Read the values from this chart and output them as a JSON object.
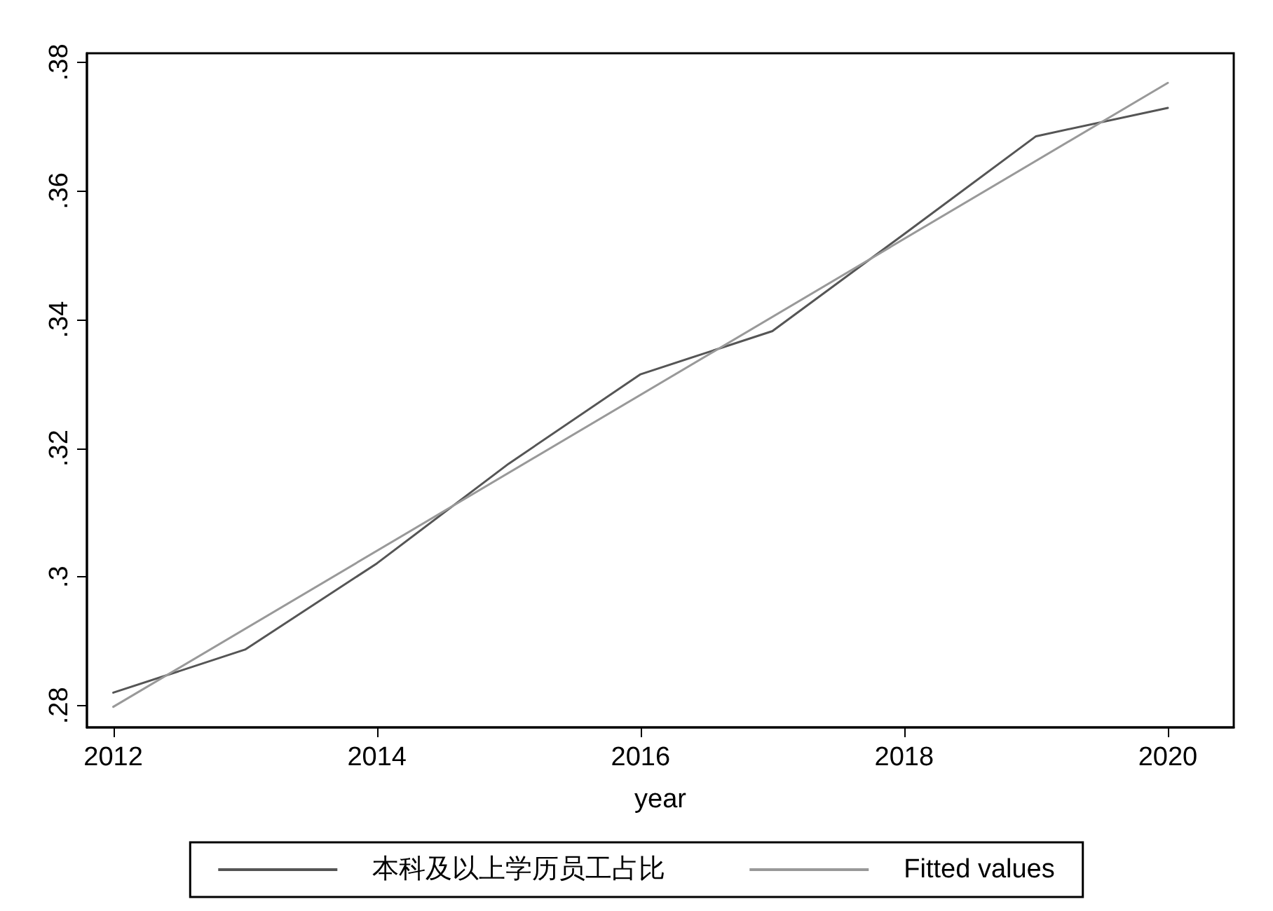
{
  "chart_data": {
    "type": "line",
    "xlabel": "year",
    "x": [
      2012,
      2013,
      2014,
      2015,
      2016,
      2017,
      2018,
      2019,
      2020
    ],
    "series": [
      {
        "name": "本科及以上学历员工占比",
        "color": "#555555",
        "values": [
          0.282,
          0.2887,
          0.3021,
          0.3176,
          0.3315,
          0.3382,
          0.3533,
          0.3685,
          0.3729
        ]
      },
      {
        "name": "Fitted values",
        "color": "#999999",
        "type": "line",
        "x": [
          2012,
          2020
        ],
        "values": [
          0.2798,
          0.3768
        ]
      }
    ],
    "xlim": [
      2011.8,
      2020.5
    ],
    "xticks": [
      2012,
      2014,
      2016,
      2018,
      2020
    ],
    "ylim": [
      0.2766,
      0.3814
    ],
    "yticks": [
      {
        "value": 0.28,
        "label": ".28"
      },
      {
        "value": 0.3,
        "label": ".3"
      },
      {
        "value": 0.32,
        "label": ".32"
      },
      {
        "value": 0.34,
        "label": ".34"
      },
      {
        "value": 0.36,
        "label": ".36"
      },
      {
        "value": 0.38,
        "label": ".38"
      }
    ],
    "grid": false,
    "legend": "bottom",
    "marker": "none",
    "line_style": "solid"
  }
}
